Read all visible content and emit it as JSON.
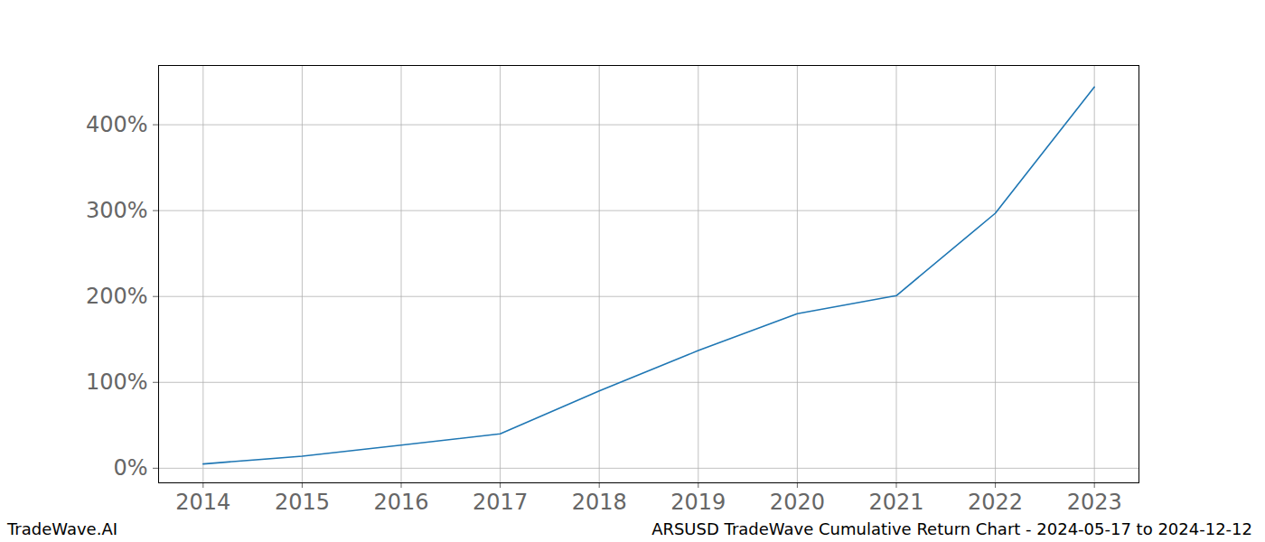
{
  "chart_data": {
    "type": "line",
    "x": [
      2014,
      2015,
      2016,
      2017,
      2018,
      2019,
      2020,
      2021,
      2022,
      2023
    ],
    "values": [
      5,
      14,
      27,
      40,
      90,
      137,
      180,
      201,
      297,
      444
    ],
    "color": "#1f77b4",
    "xlim": [
      2013.55,
      2023.45
    ],
    "xticks": [
      2014,
      2015,
      2016,
      2017,
      2018,
      2019,
      2020,
      2021,
      2022,
      2023
    ],
    "ylim": [
      -17,
      469
    ],
    "yticks": [
      {
        "value": 0,
        "label": "0%"
      },
      {
        "value": 100,
        "label": "100%"
      },
      {
        "value": 200,
        "label": "200%"
      },
      {
        "value": 300,
        "label": "300%"
      },
      {
        "value": 400,
        "label": "400%"
      }
    ],
    "grid": true,
    "annotations": [
      "TradeWave.AI",
      "ARSUSD TradeWave Cumulative Return Chart - 2024-05-17 to 2024-12-12"
    ]
  }
}
